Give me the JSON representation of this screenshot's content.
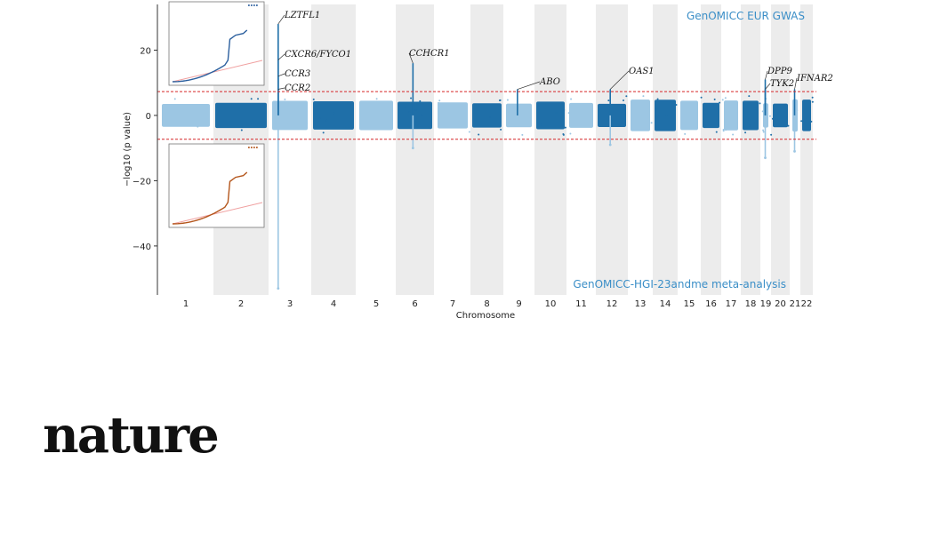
{
  "chart_data": {
    "type": "scatter",
    "subtype": "mirrored-manhattan",
    "xlabel": "Chromosome",
    "ylabel": "−log10 (p value)",
    "ylim": [
      -55,
      34
    ],
    "yticks": [
      20,
      0,
      -20,
      -40
    ],
    "chromosomes": [
      "1",
      "2",
      "3",
      "4",
      "5",
      "6",
      "7",
      "8",
      "9",
      "10",
      "11",
      "12",
      "13",
      "14",
      "15",
      "16",
      "17",
      "18",
      "19",
      "20",
      "21",
      "22"
    ],
    "significance_threshold": 7.3,
    "top_panel_label": "GenOMICC EUR GWAS",
    "bottom_panel_label": "GenOMICC-HGI-23andme meta-analysis",
    "colors": {
      "dark": "#1f6fa8",
      "light": "#9cc6e3",
      "band": "#ececec",
      "threshold": "#d62728",
      "qq_top": "#2b5f9e",
      "qq_bottom": "#b4561c",
      "qq_ref": "#f0a0a0"
    },
    "hits": [
      {
        "gene": "LZTFL1",
        "chromosome": "3",
        "value": 28
      },
      {
        "gene": "CXCR6/FYCO1",
        "chromosome": "3",
        "value": 17
      },
      {
        "gene": "CCR3",
        "chromosome": "3",
        "value": 12
      },
      {
        "gene": "CCR2",
        "chromosome": "3",
        "value": 8
      },
      {
        "gene": "CCHCR1",
        "chromosome": "6",
        "value": 16
      },
      {
        "gene": "ABO",
        "chromosome": "9",
        "value": 8
      },
      {
        "gene": "OAS1",
        "chromosome": "12",
        "value": 8
      },
      {
        "gene": "DPP9",
        "chromosome": "19",
        "value": 11
      },
      {
        "gene": "TYK2",
        "chromosome": "19",
        "value": 8
      },
      {
        "gene": "IFNAR2",
        "chromosome": "21",
        "value": 8
      }
    ],
    "bottom_peaks": [
      {
        "chromosome": "3",
        "value": -53
      },
      {
        "chromosome": "6",
        "value": -10
      },
      {
        "chromosome": "12",
        "value": -9
      },
      {
        "chromosome": "19",
        "value": -13
      },
      {
        "chromosome": "21",
        "value": -11
      }
    ]
  },
  "brand": {
    "name": "nature"
  }
}
